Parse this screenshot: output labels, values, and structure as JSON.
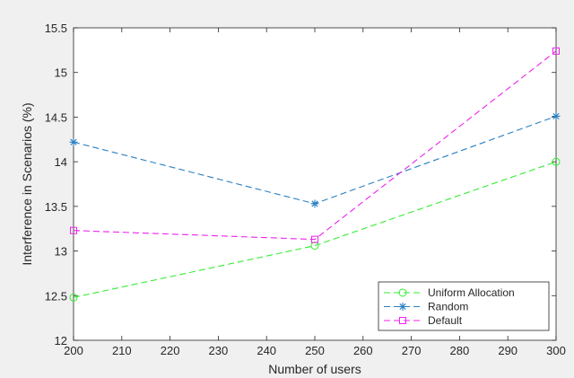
{
  "chart_data": {
    "type": "line",
    "title": "",
    "xlabel": "Number of users",
    "ylabel": "Interference in Scenarios (%)",
    "xlim": [
      200,
      300
    ],
    "ylim": [
      12,
      15.5
    ],
    "xticks": [
      200,
      210,
      220,
      230,
      240,
      250,
      260,
      270,
      280,
      290,
      300
    ],
    "yticks": [
      12,
      12.5,
      13,
      13.5,
      14,
      14.5,
      15,
      15.5
    ],
    "grid": false,
    "legend_position": "bottom-right",
    "x": [
      200,
      250,
      300
    ],
    "series": [
      {
        "name": "Uniform Allocation",
        "values": [
          12.48,
          13.06,
          14.0
        ],
        "color": "#33ee33",
        "marker": "circle",
        "line_style": "dashed"
      },
      {
        "name": "Random",
        "values": [
          14.22,
          13.53,
          14.51
        ],
        "color": "#2a7fc1",
        "marker": "asterisk",
        "line_style": "dashed"
      },
      {
        "name": "Default",
        "values": [
          13.23,
          13.13,
          15.24
        ],
        "color": "#ee22ee",
        "marker": "square",
        "line_style": "dashed"
      }
    ]
  }
}
